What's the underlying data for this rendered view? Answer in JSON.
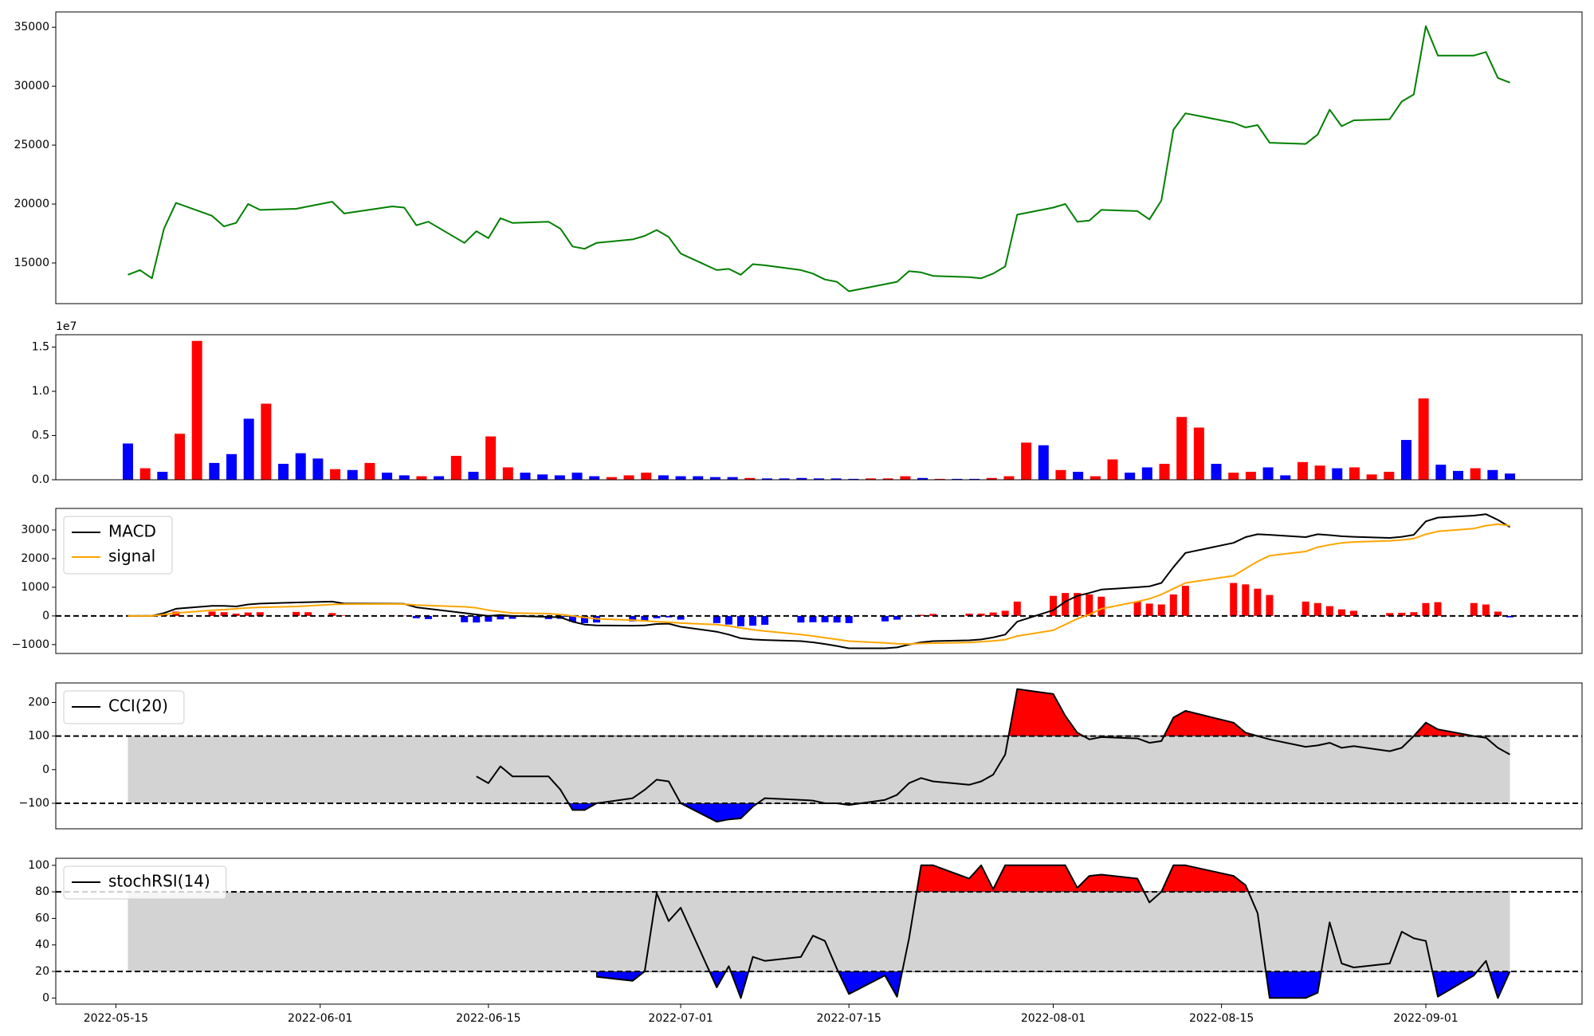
{
  "chart_data": [
    {
      "type": "line",
      "series": [
        {
          "color": "green",
          "values": [
            14000,
            14400,
            13700,
            17900,
            20100,
            19000,
            18100,
            18400,
            20000,
            19500,
            19600,
            19800,
            20200,
            19200,
            19800,
            19700,
            18200,
            18500,
            16700,
            17700,
            17100,
            18800,
            18400,
            18500,
            17900,
            16400,
            16200,
            16700,
            17000,
            17300,
            17800,
            17200,
            15800,
            14400,
            14500,
            14000,
            14900,
            14800,
            14400,
            14100,
            13600,
            13400,
            12600,
            13200,
            13400,
            14300,
            14200,
            13900,
            13800,
            13700,
            14100,
            14700,
            19100,
            19700,
            20000,
            18500,
            18600,
            19500,
            19400,
            18700,
            20300,
            26300,
            27700,
            26900,
            26500,
            26700,
            25200,
            25100,
            25900,
            28000,
            26600,
            27100,
            27200,
            28700,
            29300,
            35100,
            32600,
            32600,
            32900,
            30700,
            30300
          ]
        }
      ],
      "ylim": [
        11550,
        36300
      ],
      "yticks": [
        15000,
        20000,
        25000,
        30000,
        35000
      ]
    },
    {
      "type": "bar",
      "values": [
        4100000,
        1300000,
        900000,
        5200000,
        15700000,
        1900000,
        2900000,
        6900000,
        8600000,
        1800000,
        3000000,
        2400000,
        1200000,
        1100000,
        1900000,
        800000,
        500000,
        400000,
        400000,
        2700000,
        900000,
        4900000,
        1400000,
        800000,
        600000,
        500000,
        800000,
        400000,
        300000,
        500000,
        800000,
        500000,
        400000,
        400000,
        300000,
        300000,
        200000,
        150000,
        150000,
        200000,
        150000,
        150000,
        100000,
        150000,
        150000,
        400000,
        200000,
        100000,
        100000,
        100000,
        200000,
        400000,
        4200000,
        3900000,
        1100000,
        900000,
        400000,
        2300000,
        800000,
        1400000,
        1800000,
        7100000,
        5900000,
        1800000,
        800000,
        900000,
        1400000,
        500000,
        2000000,
        1600000,
        1300000,
        1400000,
        600000,
        900000,
        4500000,
        9200000,
        1700000,
        1000000,
        1300000,
        1100000,
        700000
      ],
      "colors": [
        "blue",
        "red",
        "blue",
        "red",
        "red",
        "blue",
        "blue",
        "blue",
        "red",
        "blue",
        "blue",
        "blue",
        "red",
        "blue",
        "red",
        "blue",
        "blue",
        "red",
        "blue",
        "red",
        "blue",
        "red",
        "red",
        "blue",
        "blue",
        "blue",
        "blue",
        "blue",
        "red",
        "red",
        "red",
        "blue",
        "blue",
        "blue",
        "blue",
        "blue",
        "red",
        "blue",
        "blue",
        "blue",
        "blue",
        "blue",
        "blue",
        "red",
        "red",
        "red",
        "blue",
        "red",
        "blue",
        "blue",
        "red",
        "red",
        "red",
        "blue",
        "red",
        "blue",
        "red",
        "red",
        "blue",
        "blue",
        "red",
        "red",
        "red",
        "blue",
        "red",
        "red",
        "blue",
        "blue",
        "red",
        "red",
        "blue",
        "red",
        "red",
        "red",
        "blue",
        "red",
        "blue",
        "blue",
        "red",
        "blue",
        "blue"
      ],
      "ylim": [
        0,
        16400000
      ],
      "yticks": [
        {
          "value": 0,
          "label": "0.0"
        },
        {
          "value": 5000000,
          "label": "0.5"
        },
        {
          "value": 10000000,
          "label": "1.0"
        },
        {
          "value": 15000000,
          "label": "1.5"
        }
      ],
      "offset_label": "1e7"
    },
    {
      "type": "macd",
      "series": [
        {
          "name": "MACD",
          "color": "black",
          "values": [
            0,
            0,
            0,
            100,
            250,
            350,
            350,
            330,
            400,
            430,
            470,
            480,
            500,
            430,
            430,
            420,
            300,
            250,
            100,
            50,
            0,
            30,
            0,
            -30,
            -50,
            -200,
            -300,
            -330,
            -340,
            -330,
            -280,
            -270,
            -380,
            -550,
            -650,
            -780,
            -820,
            -840,
            -880,
            -920,
            -980,
            -1050,
            -1130,
            -1130,
            -1100,
            -1000,
            -920,
            -880,
            -850,
            -820,
            -750,
            -650,
            -200,
            200,
            500,
            700,
            800,
            920,
            1000,
            1030,
            1150,
            1700,
            2200,
            2550,
            2750,
            2850,
            2830,
            2750,
            2850,
            2820,
            2780,
            2760,
            2720,
            2760,
            2830,
            3300,
            3430,
            3500,
            3550,
            3350,
            3100
          ]
        },
        {
          "name": "signal",
          "color": "orange",
          "values": [
            0,
            0,
            0,
            50,
            100,
            200,
            220,
            250,
            280,
            300,
            330,
            350,
            400,
            410,
            420,
            410,
            380,
            360,
            320,
            280,
            200,
            150,
            100,
            80,
            50,
            0,
            -50,
            -100,
            -150,
            -170,
            -200,
            -220,
            -250,
            -300,
            -350,
            -420,
            -480,
            -530,
            -650,
            -700,
            -760,
            -820,
            -880,
            -940,
            -970,
            -980,
            -960,
            -950,
            -930,
            -900,
            -870,
            -830,
            -700,
            -500,
            -300,
            -100,
            50,
            250,
            500,
            600,
            750,
            950,
            1150,
            1400,
            1650,
            1900,
            2100,
            2250,
            2400,
            2480,
            2550,
            2580,
            2620,
            2650,
            2700,
            2850,
            2950,
            3050,
            3150,
            3200,
            3150
          ]
        }
      ],
      "histogram": {
        "positive_color": "red",
        "negative_color": "blue",
        "values": [
          0,
          0,
          0,
          50,
          150,
          150,
          130,
          80,
          120,
          130,
          140,
          130,
          100,
          20,
          10,
          10,
          -80,
          -110,
          -220,
          -230,
          -200,
          -120,
          -100,
          -110,
          -100,
          -200,
          -250,
          -230,
          -190,
          -160,
          -80,
          -50,
          -130,
          -250,
          -300,
          -360,
          -340,
          -310,
          -230,
          -220,
          -220,
          -230,
          -250,
          -190,
          -130,
          -20,
          40,
          70,
          80,
          80,
          120,
          180,
          500,
          700,
          800,
          800,
          750,
          670,
          500,
          430,
          400,
          750,
          1050,
          1150,
          1100,
          950,
          730,
          500,
          450,
          340,
          230,
          180,
          100,
          110,
          130,
          450,
          480,
          450,
          400,
          150,
          -50
        ]
      },
      "hlines": [
        0
      ],
      "legend": "upper left",
      "ylim": [
        -1310,
        3750
      ],
      "yticks": [
        {
          "value": -1000,
          "label": "−1000"
        },
        0,
        1000,
        2000,
        3000
      ]
    },
    {
      "type": "oscillator",
      "series": [
        {
          "name": "CCI(20)",
          "color": "black",
          "values": [
            null,
            null,
            null,
            null,
            null,
            null,
            null,
            null,
            null,
            null,
            null,
            null,
            null,
            null,
            null,
            null,
            null,
            null,
            null,
            -20,
            -40,
            10,
            -20,
            -20,
            -60,
            -120,
            -120,
            -100,
            -85,
            -60,
            -30,
            -35,
            -100,
            -155,
            -148,
            -145,
            -110,
            -85,
            -90,
            -92,
            -100,
            -100,
            -105,
            -90,
            -75,
            -40,
            -25,
            -35,
            -45,
            -35,
            -15,
            45,
            240,
            225,
            160,
            110,
            90,
            97,
            93,
            80,
            85,
            155,
            175,
            140,
            110,
            100,
            90,
            68,
            72,
            80,
            65,
            70,
            55,
            65,
            100,
            140,
            120,
            100,
            95,
            65,
            45
          ]
        }
      ],
      "hlines": [
        -100,
        100
      ],
      "band_color": "lightgray",
      "above_color": "red",
      "below_color": "blue",
      "legend": "upper left",
      "ylim": [
        -176,
        258
      ],
      "yticks": [
        {
          "value": -100,
          "label": "−100"
        },
        0,
        100,
        200
      ]
    },
    {
      "type": "oscillator",
      "series": [
        {
          "name": "stochRSI(14)",
          "color": "black",
          "values": [
            null,
            null,
            null,
            null,
            null,
            null,
            null,
            null,
            null,
            null,
            null,
            null,
            null,
            null,
            null,
            null,
            null,
            null,
            null,
            null,
            null,
            null,
            null,
            null,
            null,
            null,
            null,
            16,
            13,
            20,
            79,
            58,
            68,
            8,
            24,
            0,
            31,
            28,
            31,
            47,
            43,
            22,
            3,
            17,
            1,
            45,
            100,
            100,
            90,
            100,
            82,
            100,
            100,
            100,
            100,
            83,
            92,
            93,
            90,
            72,
            80,
            100,
            100,
            92,
            85,
            64,
            0,
            0,
            4,
            57,
            26,
            23,
            26,
            50,
            45,
            43,
            1,
            17,
            28,
            0,
            20
          ]
        }
      ],
      "hlines": [
        20,
        80
      ],
      "band_color": "lightgray",
      "above_color": "red",
      "below_color": "blue",
      "legend": "upper left",
      "ylim": [
        -4.6,
        105.3
      ],
      "yticks": [
        0,
        20,
        40,
        60,
        80,
        100
      ],
      "x": [
        "2022-05-16",
        "2022-05-17",
        "2022-05-18",
        "2022-05-19",
        "2022-05-20",
        "2022-05-23",
        "2022-05-24",
        "2022-05-25",
        "2022-05-26",
        "2022-05-27",
        "2022-05-30",
        "2022-05-31",
        "2022-06-02",
        "2022-06-03",
        "2022-06-07",
        "2022-06-08",
        "2022-06-09",
        "2022-06-10",
        "2022-06-13",
        "2022-06-14",
        "2022-06-15",
        "2022-06-16",
        "2022-06-17",
        "2022-06-20",
        "2022-06-21",
        "2022-06-22",
        "2022-06-23",
        "2022-06-24",
        "2022-06-27",
        "2022-06-28",
        "2022-06-29",
        "2022-06-30",
        "2022-07-01",
        "2022-07-04",
        "2022-07-05",
        "2022-07-06",
        "2022-07-07",
        "2022-07-08",
        "2022-07-11",
        "2022-07-12",
        "2022-07-13",
        "2022-07-14",
        "2022-07-15",
        "2022-07-18",
        "2022-07-19",
        "2022-07-20",
        "2022-07-21",
        "2022-07-22",
        "2022-07-25",
        "2022-07-26",
        "2022-07-27",
        "2022-07-28",
        "2022-07-29",
        "2022-08-01",
        "2022-08-02",
        "2022-08-03",
        "2022-08-04",
        "2022-08-05",
        "2022-08-08",
        "2022-08-09",
        "2022-08-10",
        "2022-08-11",
        "2022-08-12",
        "2022-08-16",
        "2022-08-17",
        "2022-08-18",
        "2022-08-19",
        "2022-08-22",
        "2022-08-23",
        "2022-08-24",
        "2022-08-25",
        "2022-08-26",
        "2022-08-29",
        "2022-08-30",
        "2022-08-31",
        "2022-09-01",
        "2022-09-02",
        "2022-09-05",
        "2022-09-06",
        "2022-09-07",
        "2022-09-08"
      ],
      "xlim": [
        "2022-05-10",
        "2022-09-14"
      ],
      "xticks": [
        "2022-05-15",
        "2022-06-01",
        "2022-06-15",
        "2022-07-01",
        "2022-07-15",
        "2022-08-01",
        "2022-08-15",
        "2022-09-01"
      ]
    }
  ]
}
